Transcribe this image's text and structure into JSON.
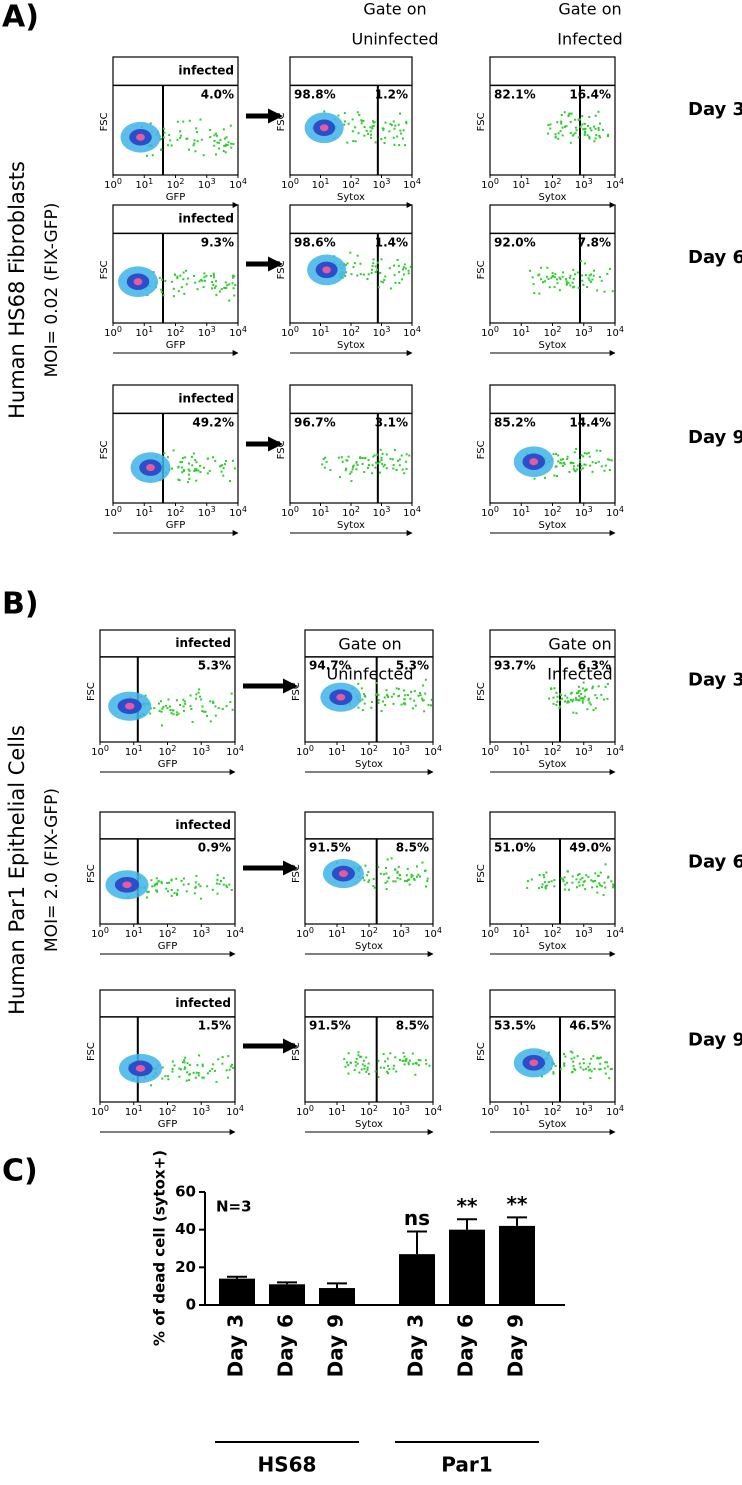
{
  "figure": {
    "flow_axes": {
      "y_label": "FSC",
      "gfp_label": "GFP",
      "sytox_label": "Sytox",
      "tick_base": "10",
      "tick_exponents": [
        "0",
        "1",
        "2",
        "3",
        "4"
      ]
    },
    "panels": [
      {
        "label": "A)",
        "side_title": "Human HS68 Fibroblasts",
        "side_subtitle": "MOI= 0.02 (FIX-GFP)",
        "column_headers": [
          [
            "Gate on",
            "Uninfected"
          ],
          [
            "Gate on",
            "Infected"
          ]
        ],
        "rows": [
          {
            "day": "Day 3",
            "gate_label": "infected",
            "infected_pct": "4.0%",
            "uninfected_gate": [
              "98.8%",
              "1.2%"
            ],
            "infected_gate": [
              "82.1%",
              "16.4%"
            ]
          },
          {
            "day": "Day 6",
            "gate_label": "infected",
            "infected_pct": "9.3%",
            "uninfected_gate": [
              "98.6%",
              "1.4%"
            ],
            "infected_gate": [
              "92.0%",
              "7.8%"
            ]
          },
          {
            "day": "Day 9",
            "gate_label": "infected",
            "infected_pct": "49.2%",
            "uninfected_gate": [
              "96.7%",
              "3.1%"
            ],
            "infected_gate": [
              "85.2%",
              "14.4%"
            ]
          }
        ]
      },
      {
        "label": "B)",
        "side_title": "Human Par1 Epithelial Cells",
        "side_subtitle": "MOI= 2.0 (FIX-GFP)",
        "column_headers": [
          [
            "Gate on",
            "Uninfected"
          ],
          [
            "Gate on",
            "Infected"
          ]
        ],
        "rows": [
          {
            "day": "Day 3",
            "gate_label": "infected",
            "infected_pct": "5.3%",
            "uninfected_gate": [
              "94.7%",
              "5.3%"
            ],
            "infected_gate": [
              "93.7%",
              "6.3%"
            ]
          },
          {
            "day": "Day 6",
            "gate_label": "infected",
            "infected_pct": "0.9%",
            "uninfected_gate": [
              "91.5%",
              "8.5%"
            ],
            "infected_gate": [
              "51.0%",
              "49.0%"
            ]
          },
          {
            "day": "Day 9",
            "gate_label": "infected",
            "infected_pct": "1.5%",
            "uninfected_gate": [
              "91.5%",
              "8.5%"
            ],
            "infected_gate": [
              "53.5%",
              "46.5%"
            ]
          }
        ]
      }
    ],
    "chart_panel_label": "C)"
  },
  "chart_data": {
    "type": "bar",
    "ylabel": "% of dead cell (sytox+)",
    "categories": [
      "Day 3",
      "Day 6",
      "Day 9",
      "Day 3",
      "Day 6",
      "Day 9"
    ],
    "group_labels": [
      "HS68",
      "Par1"
    ],
    "values": [
      14,
      11,
      9,
      27,
      40,
      42
    ],
    "errors": [
      1,
      1,
      2.5,
      12,
      5.5,
      4.5
    ],
    "value_annotations": [
      null,
      null,
      null,
      "ns",
      "**",
      "**"
    ],
    "annotation": "N=3",
    "color": "#000000",
    "ylim": [
      0,
      60
    ],
    "yticks": [
      0,
      20,
      40,
      60
    ]
  }
}
